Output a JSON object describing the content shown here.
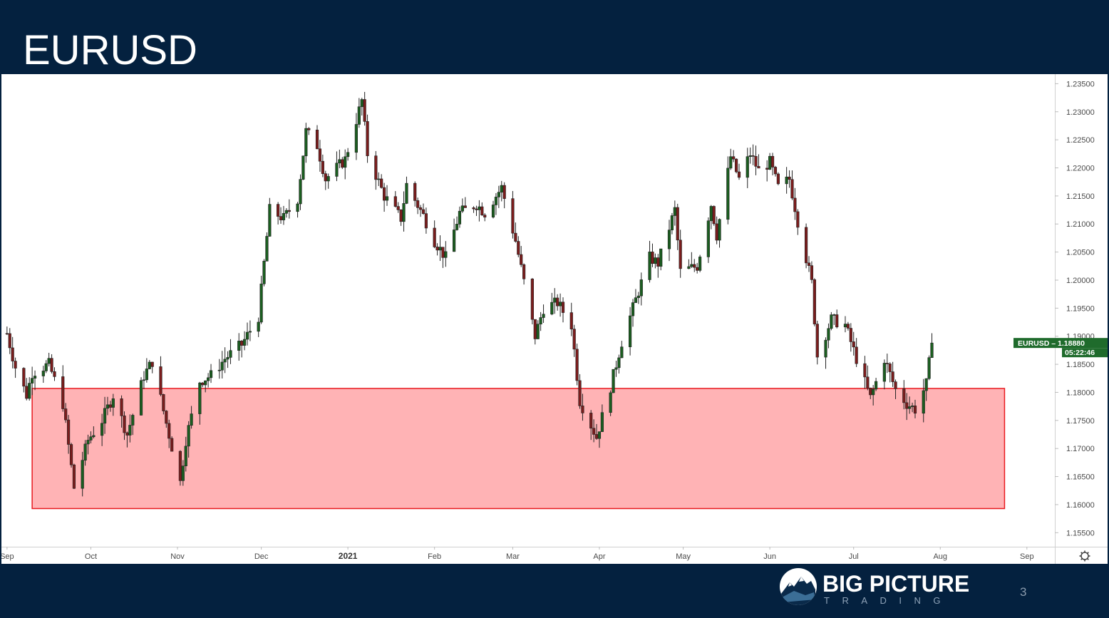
{
  "slide": {
    "title": "EURUSD",
    "page_number": "3"
  },
  "brand": {
    "name": "BIG PICTURE",
    "sub": "TRADING"
  },
  "colors": {
    "background": "#04213f",
    "up_candle": "#1b5e20",
    "down_candle": "#7b1d1d",
    "zone_fill": "#ffb3b5",
    "zone_stroke": "#e8191f",
    "tag": "#1f6b2c"
  },
  "chart_data": {
    "type": "candlestick",
    "title": "",
    "ylim": [
      1.1525,
      1.2367
    ],
    "y_ticks": [
      "1.15500",
      "1.16000",
      "1.16500",
      "1.17000",
      "1.17500",
      "1.18000",
      "1.18500",
      "1.19000",
      "1.19500",
      "1.20000",
      "1.20500",
      "1.21000",
      "1.21500",
      "1.22000",
      "1.22500",
      "1.23000",
      "1.23500"
    ],
    "x_labels": [
      {
        "label": "Sep",
        "date": "2020-09-01"
      },
      {
        "label": "Oct",
        "date": "2020-10-01"
      },
      {
        "label": "Nov",
        "date": "2020-11-01"
      },
      {
        "label": "Dec",
        "date": "2020-12-01"
      },
      {
        "label": "2021",
        "date": "2021-01-01",
        "bold": true
      },
      {
        "label": "Feb",
        "date": "2021-02-01"
      },
      {
        "label": "Mar",
        "date": "2021-03-01"
      },
      {
        "label": "Apr",
        "date": "2021-04-01"
      },
      {
        "label": "May",
        "date": "2021-05-01"
      },
      {
        "label": "Jun",
        "date": "2021-06-01"
      },
      {
        "label": "Jul",
        "date": "2021-07-01"
      },
      {
        "label": "Aug",
        "date": "2021-08-01"
      },
      {
        "label": "Sep",
        "date": "2021-09-01"
      }
    ],
    "anchors": [
      [
        "2020-09-01",
        1.1905
      ],
      [
        "2020-09-04",
        1.1845
      ],
      [
        "2020-09-08",
        1.1795
      ],
      [
        "2020-09-10",
        1.1835
      ],
      [
        "2020-09-16",
        1.185
      ],
      [
        "2020-09-21",
        1.178
      ],
      [
        "2020-09-25",
        1.163
      ],
      [
        "2020-09-30",
        1.1715
      ],
      [
        "2020-10-05",
        1.175
      ],
      [
        "2020-10-09",
        1.1795
      ],
      [
        "2020-10-14",
        1.1725
      ],
      [
        "2020-10-20",
        1.183
      ],
      [
        "2020-10-23",
        1.1855
      ],
      [
        "2020-10-28",
        1.1745
      ],
      [
        "2020-11-02",
        1.164
      ],
      [
        "2020-11-04",
        1.1715
      ],
      [
        "2020-11-09",
        1.182
      ],
      [
        "2020-11-13",
        1.183
      ],
      [
        "2020-11-18",
        1.186
      ],
      [
        "2020-11-24",
        1.1885
      ],
      [
        "2020-11-30",
        1.1935
      ],
      [
        "2020-12-04",
        1.2125
      ],
      [
        "2020-12-09",
        1.211
      ],
      [
        "2020-12-14",
        1.2145
      ],
      [
        "2020-12-17",
        1.2265
      ],
      [
        "2020-12-21",
        1.224
      ],
      [
        "2020-12-24",
        1.218
      ],
      [
        "2020-12-31",
        1.2215
      ],
      [
        "2021-01-06",
        1.232
      ],
      [
        "2021-01-08",
        1.2225
      ],
      [
        "2021-01-14",
        1.215
      ],
      [
        "2021-01-20",
        1.211
      ],
      [
        "2021-01-22",
        1.217
      ],
      [
        "2021-01-28",
        1.2115
      ],
      [
        "2021-02-01",
        1.207
      ],
      [
        "2021-02-05",
        1.204
      ],
      [
        "2021-02-10",
        1.212
      ],
      [
        "2021-02-16",
        1.2135
      ],
      [
        "2021-02-19",
        1.212
      ],
      [
        "2021-02-25",
        1.2165
      ],
      [
        "2021-03-02",
        1.207
      ],
      [
        "2021-03-09",
        1.19
      ],
      [
        "2021-03-12",
        1.195
      ],
      [
        "2021-03-17",
        1.196
      ],
      [
        "2021-03-22",
        1.192
      ],
      [
        "2021-03-25",
        1.1785
      ],
      [
        "2021-03-31",
        1.172
      ],
      [
        "2021-04-05",
        1.181
      ],
      [
        "2021-04-09",
        1.189
      ],
      [
        "2021-04-13",
        1.195
      ],
      [
        "2021-04-19",
        1.204
      ],
      [
        "2021-04-22",
        1.203
      ],
      [
        "2021-04-28",
        1.2125
      ],
      [
        "2021-04-30",
        1.2015
      ],
      [
        "2021-05-06",
        1.2025
      ],
      [
        "2021-05-11",
        1.2135
      ],
      [
        "2021-05-13",
        1.208
      ],
      [
        "2021-05-18",
        1.222
      ],
      [
        "2021-05-21",
        1.218
      ],
      [
        "2021-05-25",
        1.2225
      ],
      [
        "2021-05-28",
        1.2195
      ],
      [
        "2021-06-01",
        1.221
      ],
      [
        "2021-06-04",
        1.2165
      ],
      [
        "2021-06-08",
        1.218
      ],
      [
        "2021-06-11",
        1.2105
      ],
      [
        "2021-06-16",
        1.1995
      ],
      [
        "2021-06-18",
        1.1865
      ],
      [
        "2021-06-23",
        1.193
      ],
      [
        "2021-06-28",
        1.192
      ],
      [
        "2021-07-02",
        1.186
      ],
      [
        "2021-07-07",
        1.179
      ],
      [
        "2021-07-12",
        1.186
      ],
      [
        "2021-07-16",
        1.1805
      ],
      [
        "2021-07-20",
        1.178
      ],
      [
        "2021-07-23",
        1.177
      ],
      [
        "2021-07-27",
        1.1815
      ],
      [
        "2021-07-29",
        1.1888
      ]
    ],
    "price_tag": {
      "symbol": "EURUSD",
      "value": "1.18880",
      "countdown": "05:22:46"
    },
    "support_zone": {
      "from": 1.1593,
      "to": 1.1807,
      "start_date": "2020-09-10",
      "end_date": "2021-08-24"
    }
  }
}
